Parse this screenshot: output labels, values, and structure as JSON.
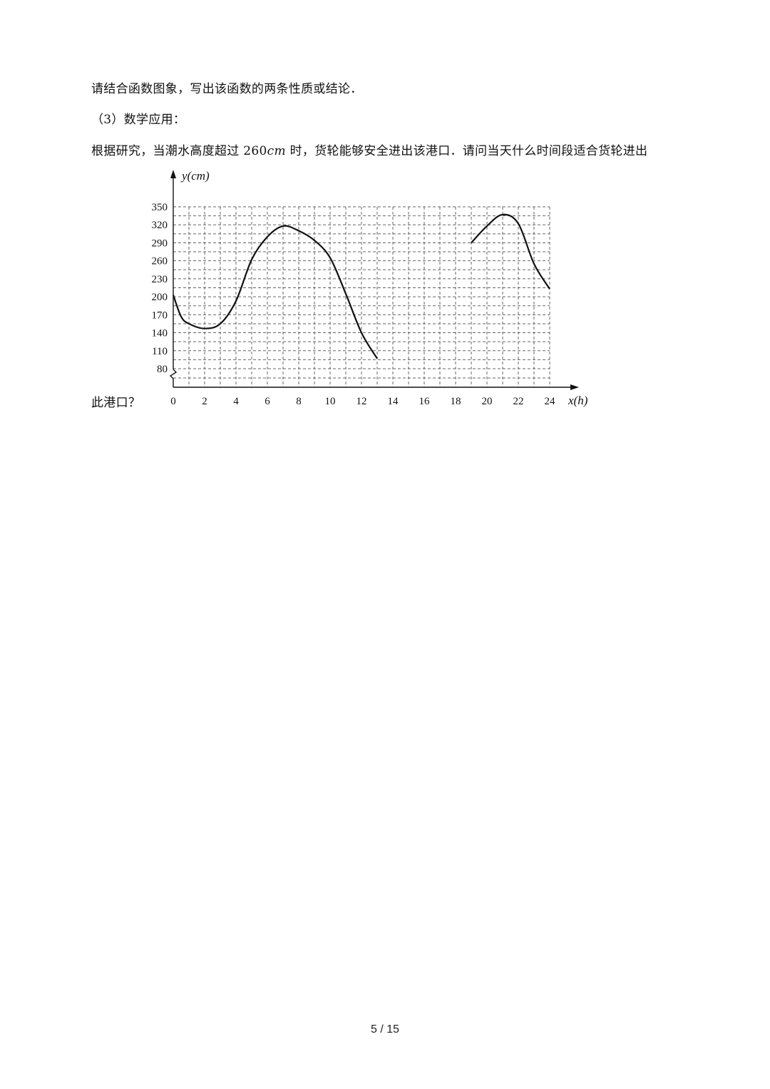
{
  "text": {
    "line1": "请结合函数图象，写出该函数的两条性质或结论．",
    "line2": "（3）数学应用：",
    "line3_before": "根据研究，当潮水高度超过 260",
    "line3_unit": "cm",
    "line3_after": " 时，货轮能够安全进出该港口．请问当天什么时间段适合货轮进出",
    "line4": "此港口？"
  },
  "page_number": "5 / 15",
  "chart_data": {
    "type": "line",
    "ylabel": "y(cm)",
    "xlabel": "x(h)",
    "x_ticks": [
      0,
      2,
      4,
      6,
      8,
      10,
      12,
      14,
      16,
      18,
      20,
      22,
      24
    ],
    "y_ticks": [
      80,
      110,
      140,
      170,
      200,
      230,
      260,
      290,
      320,
      350
    ],
    "xlim": [
      0,
      24
    ],
    "ylim": [
      80,
      350
    ],
    "grid": "dashed",
    "axis_break": true,
    "series": [
      {
        "segment": 1,
        "x": [
          0,
          0.5,
          1,
          2,
          3,
          4,
          5,
          6,
          7,
          8,
          9,
          10,
          11,
          12,
          13
        ],
        "y": [
          203,
          167,
          155,
          147,
          155,
          193,
          262,
          300,
          318,
          310,
          294,
          265,
          205,
          140,
          97
        ]
      },
      {
        "segment": 2,
        "x": [
          19,
          20,
          21,
          22,
          23,
          24
        ],
        "y": [
          290,
          318,
          337,
          322,
          255,
          213
        ]
      }
    ]
  }
}
